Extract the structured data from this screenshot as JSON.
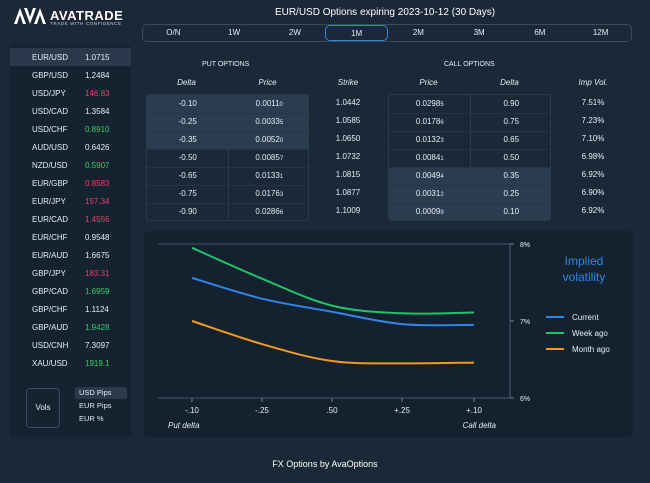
{
  "brand": {
    "name": "AVATRADE",
    "tagline": "TRADE WITH CONFIDENCE"
  },
  "title": "EUR/USD Options expiring 2023-10-12 (30 Days)",
  "tenors": [
    "O/N",
    "1W",
    "2W",
    "1M",
    "2M",
    "3M",
    "6M",
    "12M"
  ],
  "active_tenor": "1M",
  "colors": {
    "up": "#32d06a",
    "down": "#ef3e6b",
    "accent": "#2f86e8",
    "current": "#2f86e8",
    "week_ago": "#21c36a",
    "month_ago": "#f39a1e"
  },
  "pairs": [
    {
      "name": "EUR/USD",
      "rate": "1.0715",
      "dir": "neutral",
      "selected": true
    },
    {
      "name": "GBP/USD",
      "rate": "1.2484",
      "dir": "neutral"
    },
    {
      "name": "USD/JPY",
      "rate": "146.83",
      "dir": "down"
    },
    {
      "name": "USD/CAD",
      "rate": "1.3584",
      "dir": "neutral"
    },
    {
      "name": "USD/CHF",
      "rate": "0.8910",
      "dir": "up"
    },
    {
      "name": "AUD/USD",
      "rate": "0.6426",
      "dir": "neutral"
    },
    {
      "name": "NZD/USD",
      "rate": "0.5907",
      "dir": "up"
    },
    {
      "name": "EUR/GBP",
      "rate": "0.8583",
      "dir": "down"
    },
    {
      "name": "EUR/JPY",
      "rate": "157.34",
      "dir": "down"
    },
    {
      "name": "EUR/CAD",
      "rate": "1.4556",
      "dir": "down"
    },
    {
      "name": "EUR/CHF",
      "rate": "0.9548",
      "dir": "neutral"
    },
    {
      "name": "EUR/AUD",
      "rate": "1.6675",
      "dir": "neutral"
    },
    {
      "name": "GBP/JPY",
      "rate": "183.31",
      "dir": "down"
    },
    {
      "name": "GBP/CAD",
      "rate": "1.6959",
      "dir": "up"
    },
    {
      "name": "GBP/CHF",
      "rate": "1.1124",
      "dir": "neutral"
    },
    {
      "name": "GBP/AUD",
      "rate": "1.9428",
      "dir": "up"
    },
    {
      "name": "USD/CNH",
      "rate": "7.3097",
      "dir": "neutral"
    },
    {
      "name": "XAU/USD",
      "rate": "1919.1",
      "dir": "up"
    }
  ],
  "vols_label": "Vols",
  "units": [
    {
      "label": "USD Pips",
      "active": true
    },
    {
      "label": "EUR Pips",
      "active": false
    },
    {
      "label": "EUR %",
      "active": false
    }
  ],
  "put_label": "PUT OPTIONS",
  "call_label": "CALL OPTIONS",
  "headers": {
    "put_delta": "Delta",
    "put_price": "Price",
    "strike": "Strike",
    "call_price": "Price",
    "call_delta": "Delta",
    "imp_vol": "Imp Vol."
  },
  "put_options": [
    {
      "delta": "-0.10",
      "price": "0.0011",
      "price_sub": "0",
      "shaded": true
    },
    {
      "delta": "-0.25",
      "price": "0.0033",
      "price_sub": "5",
      "shaded": true
    },
    {
      "delta": "-0.35",
      "price": "0.0052",
      "price_sub": "0",
      "shaded": true
    },
    {
      "delta": "-0.50",
      "price": "0.0085",
      "price_sub": "7",
      "shaded": false
    },
    {
      "delta": "-0.65",
      "price": "0.0133",
      "price_sub": "1",
      "shaded": false
    },
    {
      "delta": "-0.75",
      "price": "0.0176",
      "price_sub": "3",
      "shaded": false
    },
    {
      "delta": "-0.90",
      "price": "0.0286",
      "price_sub": "6",
      "shaded": false
    }
  ],
  "strikes": [
    "1.0442",
    "1.0585",
    "1.0650",
    "1.0732",
    "1.0815",
    "1.0877",
    "1.1009"
  ],
  "call_options": [
    {
      "price": "0.0298",
      "price_sub": "5",
      "delta": "0.90",
      "shaded": false
    },
    {
      "price": "0.0178",
      "price_sub": "6",
      "delta": "0.75",
      "shaded": false
    },
    {
      "price": "0.0132",
      "price_sub": "3",
      "delta": "0.65",
      "shaded": false
    },
    {
      "price": "0.0084",
      "price_sub": "1",
      "delta": "0.50",
      "shaded": false
    },
    {
      "price": "0.0049",
      "price_sub": "4",
      "delta": "0.35",
      "shaded": true
    },
    {
      "price": "0.0031",
      "price_sub": "2",
      "delta": "0.25",
      "shaded": true
    },
    {
      "price": "0.0009",
      "price_sub": "9",
      "delta": "0.10",
      "shaded": true
    }
  ],
  "imp_vols": [
    "7.51%",
    "7.23%",
    "7.10%",
    "6.98%",
    "6.92%",
    "6.90%",
    "6.92%"
  ],
  "chart_data": {
    "type": "line",
    "title": "Implied volatility",
    "categories": [
      "-.10",
      "-.25",
      ".50",
      "+.25",
      "+.10"
    ],
    "xlabel_left": "Put delta",
    "xlabel_right": "Call delta",
    "y_ticks": [
      "8%",
      "7%",
      "6%"
    ],
    "ylim": [
      6,
      8
    ],
    "legend_position": "right",
    "series": [
      {
        "name": "Current",
        "color": "#2f86e8",
        "values": [
          7.56,
          7.29,
          7.12,
          6.96,
          6.95
        ]
      },
      {
        "name": "Week ago",
        "color": "#21c36a",
        "values": [
          7.95,
          7.55,
          7.2,
          7.1,
          7.11
        ]
      },
      {
        "name": "Month ago",
        "color": "#f39a1e",
        "values": [
          7.0,
          6.7,
          6.48,
          6.45,
          6.46
        ]
      }
    ]
  },
  "footer": "FX Options by AvaOptions"
}
